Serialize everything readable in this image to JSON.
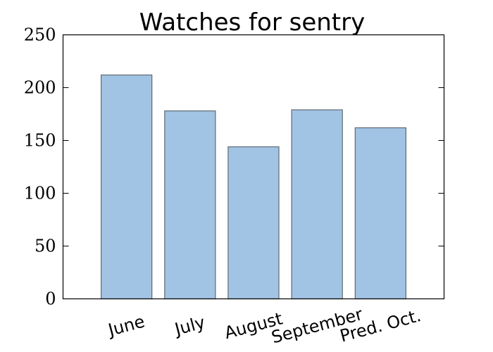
{
  "chart_data": {
    "type": "bar",
    "title": "Watches for sentry",
    "xlabel": "",
    "ylabel": "",
    "categories": [
      "June",
      "July",
      "August",
      "September",
      "Pred. Oct."
    ],
    "values": [
      212,
      178,
      144,
      179,
      162
    ],
    "ylim": [
      0,
      250
    ],
    "yticks": [
      "0",
      "50",
      "100",
      "150",
      "200",
      "250"
    ],
    "bar_color": "#a1c3e4",
    "bar_edge_color": "#5f6a72",
    "grid": false,
    "legend": "none"
  }
}
